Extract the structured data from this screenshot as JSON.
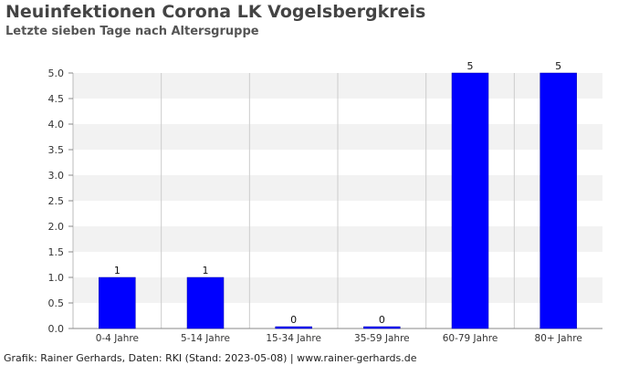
{
  "chart_data": {
    "type": "bar",
    "title": "Neuinfektionen Corona LK Vogelsbergkreis",
    "subtitle": "Letzte sieben Tage nach Altersgruppe",
    "categories": [
      "0-4 Jahre",
      "5-14 Jahre",
      "15-34 Jahre",
      "35-59 Jahre",
      "60-79 Jahre",
      "80+ Jahre"
    ],
    "values": [
      1,
      1,
      0,
      0,
      5,
      5
    ],
    "ylim": [
      0,
      5
    ],
    "yticks": [
      "0.0",
      "0.5",
      "1.0",
      "1.5",
      "2.0",
      "2.5",
      "3.0",
      "3.5",
      "4.0",
      "4.5",
      "5.0"
    ],
    "xlabel": "",
    "ylabel": "",
    "grid": true,
    "bar_color": "#0000ff",
    "band_color": "#f2f2f2",
    "gridline_color": "#cccccc"
  },
  "footer": "Grafik: Rainer Gerhards, Daten: RKI (Stand: 2023-05-08) | www.rainer-gerhards.de"
}
